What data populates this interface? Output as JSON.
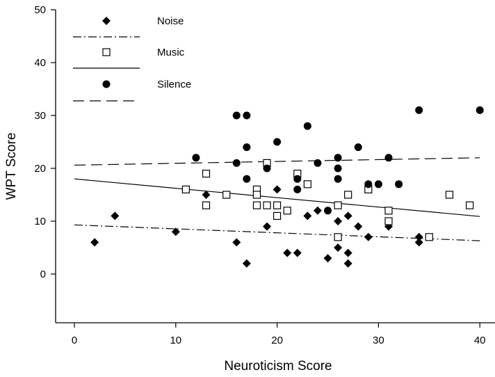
{
  "chart_data": {
    "type": "scatter",
    "xlabel": "Neuroticism Score",
    "ylabel": "WPT Score",
    "xlim": [
      0,
      40
    ],
    "ylim": [
      -10,
      50
    ],
    "x_ticks": [
      0,
      10,
      20,
      30,
      40
    ],
    "y_ticks": [
      0,
      10,
      20,
      30,
      40,
      50
    ],
    "grid": false,
    "legend_position": "top-left",
    "series": [
      {
        "name": "Noise",
        "marker": "diamond-filled",
        "line_style": "dash-dot",
        "color": "#000000",
        "points": [
          [
            2,
            6
          ],
          [
            4,
            11
          ],
          [
            10,
            8
          ],
          [
            13,
            15
          ],
          [
            16,
            6
          ],
          [
            17,
            2
          ],
          [
            19,
            9
          ],
          [
            20,
            16
          ],
          [
            21,
            4
          ],
          [
            22,
            4
          ],
          [
            23,
            11
          ],
          [
            24,
            12
          ],
          [
            25,
            3
          ],
          [
            26,
            5
          ],
          [
            26,
            10
          ],
          [
            27,
            11
          ],
          [
            27,
            4
          ],
          [
            27,
            2
          ],
          [
            28,
            9
          ],
          [
            29,
            7
          ],
          [
            31,
            9
          ],
          [
            34,
            7
          ],
          [
            34,
            6
          ]
        ],
        "fit": {
          "x": [
            0,
            40
          ],
          "y": [
            9.3,
            6.3
          ]
        }
      },
      {
        "name": "Music",
        "marker": "square-open",
        "line_style": "solid",
        "color": "#000000",
        "points": [
          [
            11,
            16
          ],
          [
            13,
            19
          ],
          [
            13,
            13
          ],
          [
            15,
            15
          ],
          [
            18,
            16
          ],
          [
            18,
            15
          ],
          [
            18,
            13
          ],
          [
            19,
            21
          ],
          [
            19,
            13
          ],
          [
            20,
            13
          ],
          [
            20,
            11
          ],
          [
            21,
            12
          ],
          [
            22,
            19
          ],
          [
            23,
            17
          ],
          [
            26,
            13
          ],
          [
            26,
            7
          ],
          [
            27,
            15
          ],
          [
            29,
            16
          ],
          [
            31,
            12
          ],
          [
            31,
            10
          ],
          [
            35,
            7
          ],
          [
            37,
            15
          ],
          [
            39,
            13
          ]
        ],
        "fit": {
          "x": [
            0,
            40
          ],
          "y": [
            18.0,
            10.9
          ]
        }
      },
      {
        "name": "Silence",
        "marker": "circle-filled",
        "line_style": "dashed",
        "color": "#000000",
        "points": [
          [
            12,
            22
          ],
          [
            16,
            30
          ],
          [
            16,
            21
          ],
          [
            17,
            30
          ],
          [
            17,
            24
          ],
          [
            17,
            18
          ],
          [
            19,
            20
          ],
          [
            20,
            25
          ],
          [
            22,
            18
          ],
          [
            22,
            16
          ],
          [
            23,
            28
          ],
          [
            24,
            21
          ],
          [
            25,
            12
          ],
          [
            26,
            22
          ],
          [
            26,
            20
          ],
          [
            26,
            18
          ],
          [
            28,
            24
          ],
          [
            29,
            17
          ],
          [
            30,
            17
          ],
          [
            31,
            22
          ],
          [
            32,
            17
          ],
          [
            34,
            31
          ],
          [
            40,
            31
          ]
        ],
        "fit": {
          "x": [
            0,
            40
          ],
          "y": [
            20.6,
            22.0
          ]
        }
      }
    ]
  }
}
